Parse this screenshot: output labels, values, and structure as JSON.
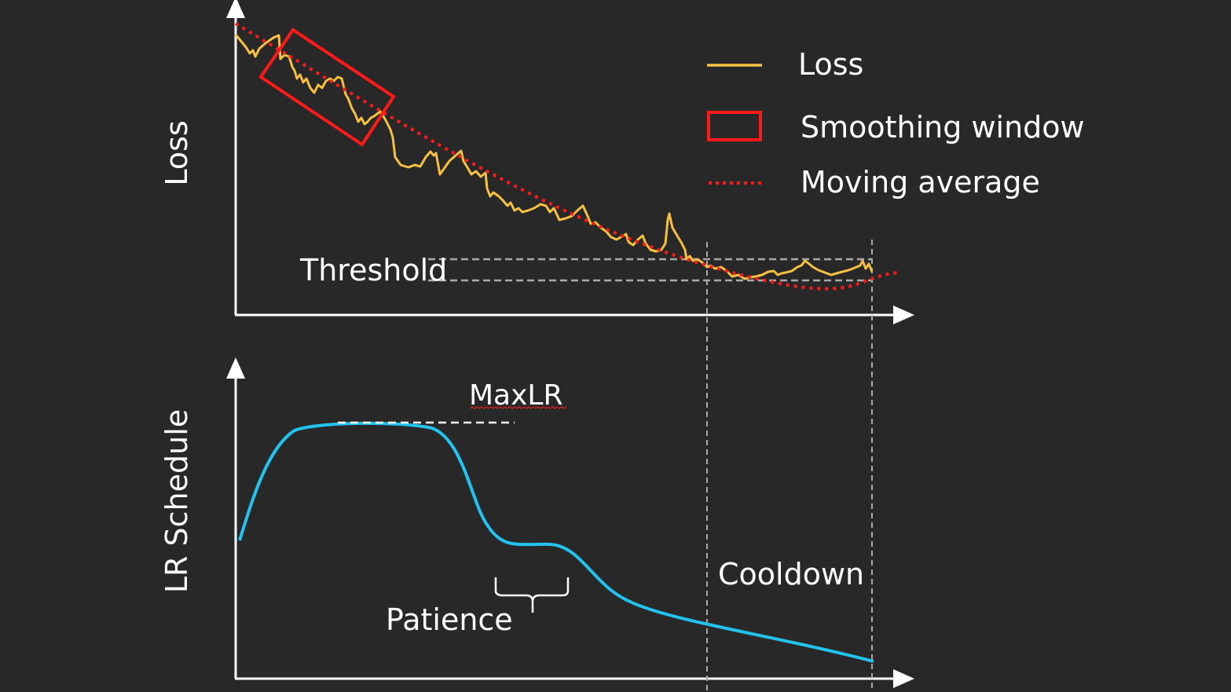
{
  "axes": {
    "top_ylabel": "Loss",
    "bottom_ylabel": "LR Schedule"
  },
  "legend": [
    {
      "label": "Loss",
      "color": "#f6c142",
      "style": "solid-line"
    },
    {
      "label": "Smoothing window",
      "color": "#ff1a1a",
      "style": "rectangle"
    },
    {
      "label": "Moving average",
      "color": "#ff1a1a",
      "style": "dotted-line"
    }
  ],
  "annotations": {
    "threshold": "Threshold",
    "max_lr": "MaxLR",
    "patience": "Patience",
    "cooldown": "Cooldown"
  },
  "colors": {
    "background": "#282828",
    "loss": "#f6c142",
    "moving_average": "#ff1a1a",
    "lr_schedule": "#22c3ee",
    "guides": "#aaaaaa"
  }
}
